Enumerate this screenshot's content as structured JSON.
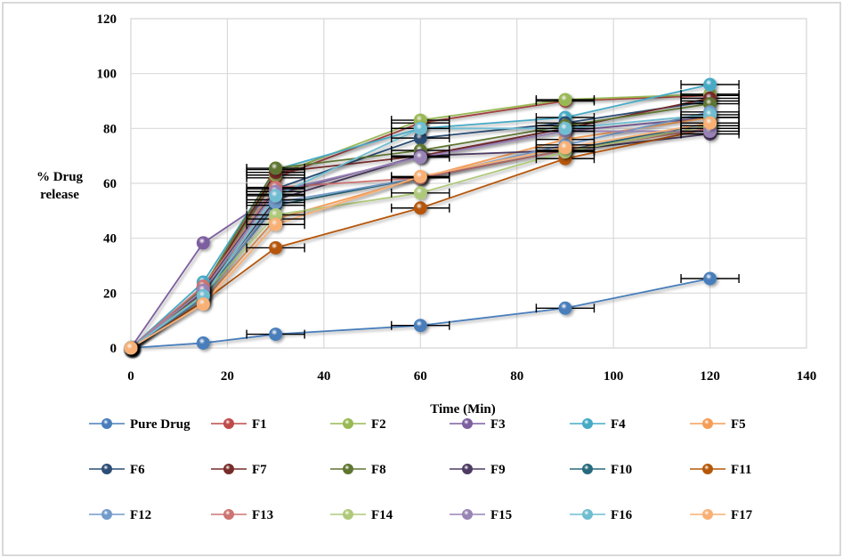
{
  "chart_data": {
    "type": "line",
    "title": "",
    "xlabel": "Time (Min)",
    "ylabel": "% Drug release",
    "xlim": [
      0,
      140
    ],
    "ylim": [
      0,
      120
    ],
    "xticks": [
      0,
      20,
      40,
      60,
      80,
      100,
      120,
      140
    ],
    "yticks": [
      0,
      20,
      40,
      60,
      80,
      100,
      120
    ],
    "grid": true,
    "legend_position": "bottom",
    "x": [
      0,
      15,
      30,
      60,
      90,
      120
    ],
    "error_bars": true,
    "series": [
      {
        "name": "Pure Drug",
        "color": "#4a7ebb",
        "values": [
          0,
          1.8,
          5,
          8.2,
          14.5,
          25.3
        ]
      },
      {
        "name": "F1",
        "color": "#be4b48",
        "values": [
          0,
          21,
          62,
          82,
          90,
          92
        ]
      },
      {
        "name": "F2",
        "color": "#98b954",
        "values": [
          0,
          20,
          63,
          83,
          90.5,
          92.5
        ]
      },
      {
        "name": "F3",
        "color": "#7d5fa0",
        "values": [
          0,
          38.3,
          56,
          70,
          79,
          84
        ]
      },
      {
        "name": "F4",
        "color": "#46aac5",
        "values": [
          0,
          24,
          65,
          80,
          84,
          96
        ]
      },
      {
        "name": "F5",
        "color": "#f59d56",
        "values": [
          0,
          17,
          47,
          62,
          76,
          84
        ]
      },
      {
        "name": "F6",
        "color": "#2c4d75",
        "values": [
          0,
          22,
          58,
          76.5,
          82,
          90
        ]
      },
      {
        "name": "F7",
        "color": "#772c2a",
        "values": [
          0,
          21,
          64,
          70,
          80,
          91
        ]
      },
      {
        "name": "F8",
        "color": "#5f7530",
        "values": [
          0,
          22,
          65.5,
          72,
          81,
          89
        ]
      },
      {
        "name": "F9",
        "color": "#4d3b62",
        "values": [
          0,
          20,
          54,
          70,
          72,
          78
        ]
      },
      {
        "name": "F10",
        "color": "#276a7c",
        "values": [
          0,
          19,
          52,
          62,
          72,
          82
        ]
      },
      {
        "name": "F11",
        "color": "#b65708",
        "values": [
          0,
          17,
          36.5,
          51,
          69,
          80
        ]
      },
      {
        "name": "F12",
        "color": "#729aca",
        "values": [
          0,
          18,
          53,
          62,
          74,
          86
        ]
      },
      {
        "name": "F13",
        "color": "#cd7371",
        "values": [
          0,
          22.5,
          58.5,
          62,
          72,
          80
        ]
      },
      {
        "name": "F14",
        "color": "#afc97a",
        "values": [
          0,
          19.5,
          48.5,
          56.5,
          71.5,
          81
        ]
      },
      {
        "name": "F15",
        "color": "#9983b5",
        "values": [
          0,
          21,
          57,
          69.5,
          79,
          79
        ]
      },
      {
        "name": "F16",
        "color": "#6fbdd1",
        "values": [
          0,
          19,
          55.5,
          80,
          80,
          85
        ]
      },
      {
        "name": "F17",
        "color": "#f9b074",
        "values": [
          0,
          16,
          45,
          62.5,
          73,
          82
        ]
      }
    ]
  }
}
